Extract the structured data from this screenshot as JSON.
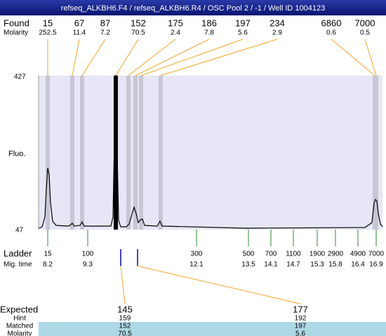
{
  "header": {
    "title": "refseq_ALKBH6.F4 / refseq_ALKBH6.R4 / OSC Pool 2 / -1 / Well ID 1004123"
  },
  "found": {
    "label": "Found",
    "molarity_label": "Molarity",
    "peaks": [
      {
        "size": "15",
        "molarity": "252.5"
      },
      {
        "size": "67",
        "molarity": "11.4"
      },
      {
        "size": "87",
        "molarity": "7.2"
      },
      {
        "size": "152",
        "molarity": "70.5"
      },
      {
        "size": "175",
        "molarity": "2.4"
      },
      {
        "size": "186",
        "molarity": "7.8"
      },
      {
        "size": "197",
        "molarity": "5.6"
      },
      {
        "size": "234",
        "molarity": "2.9"
      },
      {
        "size": "6860",
        "molarity": "0.6"
      },
      {
        "size": "7000",
        "molarity": "0.5"
      }
    ]
  },
  "y_axis": {
    "label": "Fluo.",
    "top": "427",
    "bottom": "47"
  },
  "ladder": {
    "label": "Ladder",
    "time_label": "Mig. time",
    "items": [
      {
        "size": "15",
        "time": "8.2"
      },
      {
        "size": "100",
        "time": "9.3"
      },
      {
        "size": "300",
        "time": "12.1"
      },
      {
        "size": "500",
        "time": "13.5"
      },
      {
        "size": "700",
        "time": "14.1"
      },
      {
        "size": "1100",
        "time": "14.7"
      },
      {
        "size": "1900",
        "time": "15.3"
      },
      {
        "size": "2900",
        "time": "15.8"
      },
      {
        "size": "4900",
        "time": "16.4"
      },
      {
        "size": "7000",
        "time": "16.9"
      }
    ]
  },
  "expected": {
    "labels": {
      "expected": "Expected",
      "hint": "Hint",
      "matched": "Matched",
      "molarity": "Molarity"
    },
    "columns": [
      {
        "expected": "145",
        "hint": "159",
        "matched": "152",
        "molarity": "70.5"
      },
      {
        "expected": "177",
        "hint": "192",
        "matched": "197",
        "molarity": "5.6"
      }
    ]
  }
}
